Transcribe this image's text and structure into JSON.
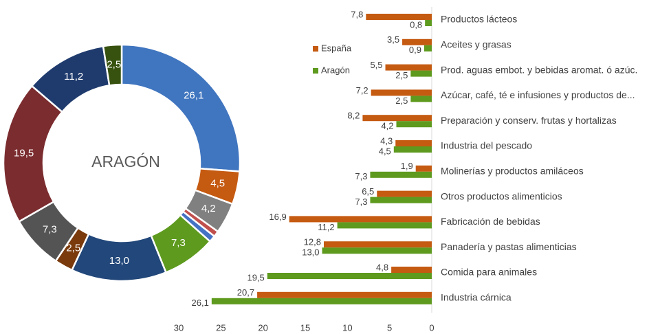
{
  "chart_data": [
    {
      "type": "pie",
      "title": "ARAGÓN",
      "values": [
        26.1,
        4.5,
        4.2,
        0.8,
        0.9,
        7.3,
        13.0,
        2.5,
        7.3,
        19.5,
        11.2,
        2.5
      ],
      "value_labels": [
        "26,1",
        "4,5",
        "4,2",
        null,
        null,
        "7,3",
        "13,0",
        "2,5",
        "7,3",
        "19,5",
        "11,2",
        "2,5"
      ],
      "colors": [
        "#4075bf",
        "#c55a11",
        "#808080",
        "#c0504d",
        "#4472c4",
        "#5e9a1e",
        "#22477a",
        "#7a3a0c",
        "#545454",
        "#7b2c2f",
        "#1f3b6e",
        "#37520f"
      ]
    },
    {
      "type": "barh",
      "reversed": true,
      "legend": "top-left",
      "categories": [
        "Productos lácteos",
        "Aceites y grasas",
        "Prod. aguas embot. y bebidas aromat. ó azúc.",
        "Azúcar, café, té e  infusiones y productos de...",
        "Preparación y conserv. frutas y hortalizas",
        "Industria del pescado",
        "Molinerías y productos amiláceos",
        "Otros productos alimenticios",
        "Fabricación de bebidas",
        "Panadería y pastas alimenticias",
        "Comida para animales",
        "Industria cárnica"
      ],
      "series": [
        {
          "name": "España",
          "color": "#c55a11",
          "values": [
            7.8,
            3.5,
            5.5,
            7.2,
            8.2,
            4.3,
            1.9,
            6.5,
            16.9,
            12.8,
            4.8,
            20.7
          ],
          "value_labels": [
            "7,8",
            "3,5",
            "5,5",
            "7,2",
            "8,2",
            "4,3",
            "1,9",
            "6,5",
            "16,9",
            "12,8",
            "4,8",
            "20,7"
          ]
        },
        {
          "name": "Aragón",
          "color": "#5e9a1e",
          "values": [
            0.8,
            0.9,
            2.5,
            2.5,
            4.2,
            4.5,
            7.3,
            7.3,
            11.2,
            13.0,
            19.5,
            26.1
          ],
          "value_labels": [
            "0,8",
            "0,9",
            "2,5",
            "2,5",
            "4,2",
            "4,5",
            "7,3",
            "7,3",
            "11,2",
            "13,0",
            "19,5",
            "26,1"
          ]
        }
      ],
      "xlim": [
        0,
        30
      ],
      "xticks": [
        30,
        25,
        20,
        15,
        10,
        5,
        0
      ]
    }
  ]
}
